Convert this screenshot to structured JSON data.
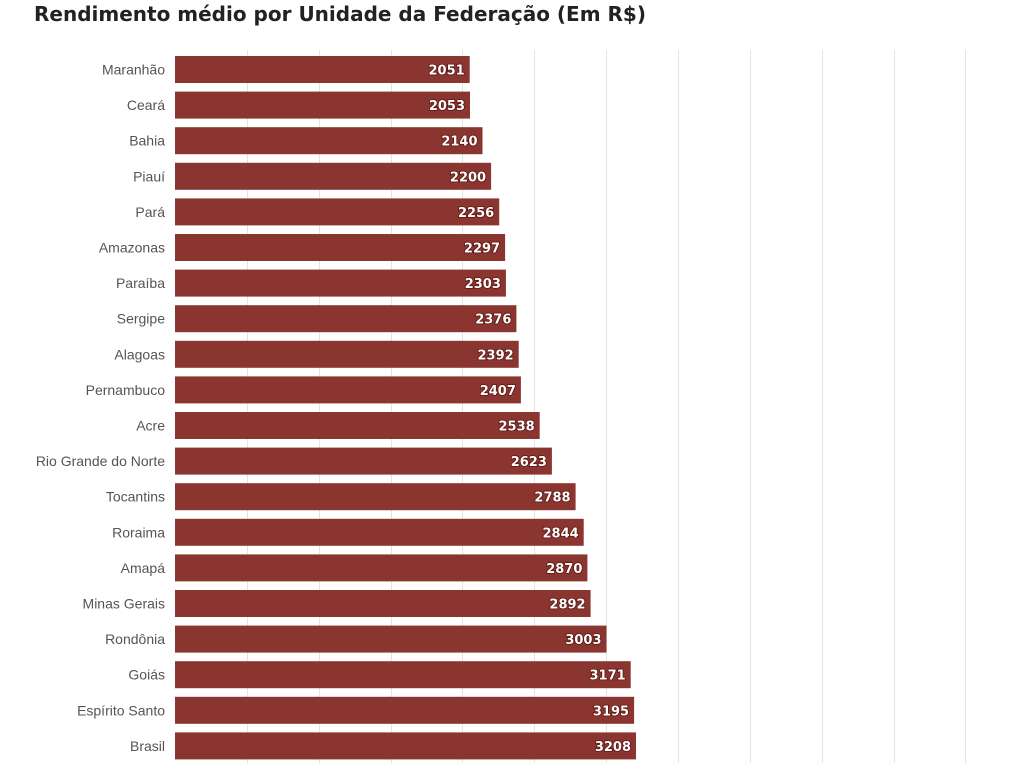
{
  "chart_data": {
    "type": "bar",
    "orientation": "horizontal",
    "title": "Rendimento médio por Unidade da Federação (Em R$)",
    "xlabel": "",
    "ylabel": "",
    "xlim": [
      0,
      11000
    ],
    "grid": true,
    "bar_color": "#8b3530",
    "categories": [
      "Maranhão",
      "Ceará",
      "Bahia",
      "Piauí",
      "Pará",
      "Amazonas",
      "Paraíba",
      "Sergipe",
      "Alagoas",
      "Pernambuco",
      "Acre",
      "Rio Grande do Norte",
      "Tocantins",
      "Roraima",
      "Amapá",
      "Minas Gerais",
      "Rondônia",
      "Goiás",
      "Espírito Santo",
      "Brasil"
    ],
    "values": [
      2051,
      2053,
      2140,
      2200,
      2256,
      2297,
      2303,
      2376,
      2392,
      2407,
      2538,
      2623,
      2788,
      2844,
      2870,
      2892,
      3003,
      3171,
      3195,
      3208
    ]
  }
}
